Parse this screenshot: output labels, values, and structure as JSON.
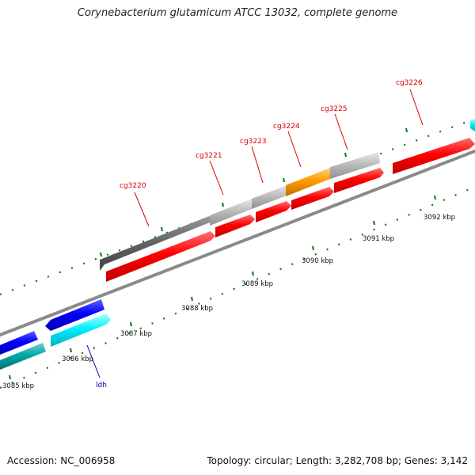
{
  "title": "Corynebacterium glutamicum ATCC 13032, complete genome",
  "footer": {
    "accession": "Accession: NC_006958",
    "summary": "Topology: circular; Length: 3,282,708 bp; Genes: 3,142"
  },
  "kbp_labels": [
    "3085 kbp",
    "3086 kbp",
    "3087 kbp",
    "3088 kbp",
    "3089 kbp",
    "3090 kbp",
    "3091 kbp",
    "3092 kbp"
  ],
  "gene_labels": {
    "cg3220": "cg3220",
    "cg3221": "cg3221",
    "cg3223": "cg3223",
    "cg3224": "cg3224",
    "cg3225": "cg3225",
    "cg3226": "cg3226",
    "ldh": "ldh"
  },
  "colors": {
    "red": "#ff0000",
    "blue": "#0000ff",
    "cyan": "#00e5ee",
    "teal": "#00a0a0",
    "gray_dark": "#606060",
    "gray_light": "#b8b8b8",
    "orange": "#ff9a00",
    "tick_green": "#0a7a0a",
    "label_red": "#d80000",
    "label_blue": "#0000aa"
  }
}
